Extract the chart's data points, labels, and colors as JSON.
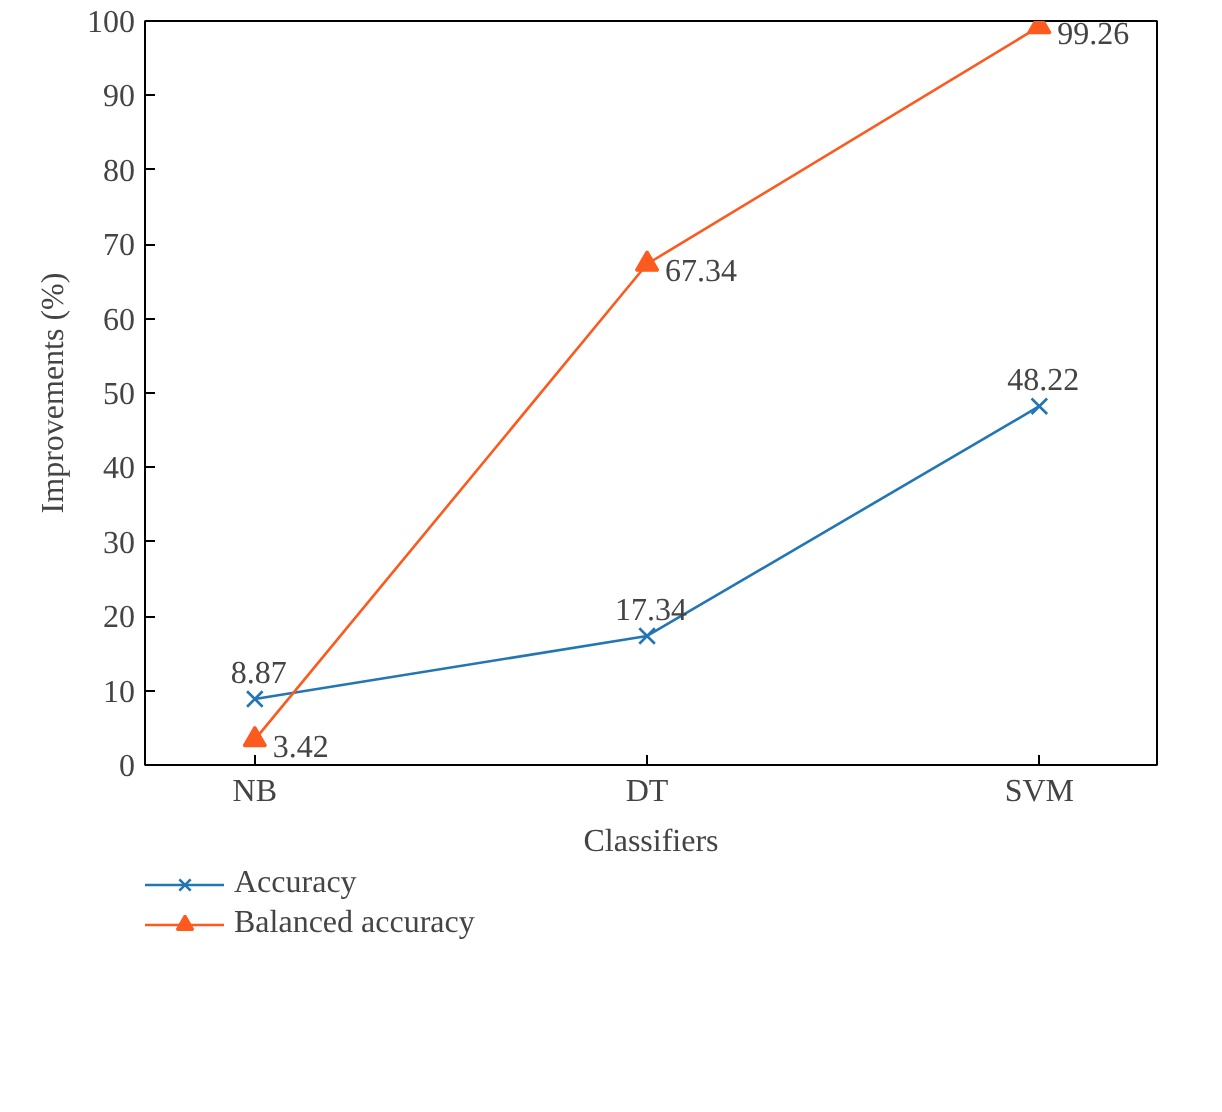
{
  "chart_data": {
    "type": "line",
    "xlabel": "Classifiers",
    "ylabel": "Improvements (%)",
    "categories": [
      "NB",
      "DT",
      "SVM"
    ],
    "ylim": [
      0,
      100
    ],
    "yticks": [
      0,
      10,
      20,
      30,
      40,
      50,
      60,
      70,
      80,
      90,
      100
    ],
    "grid": false,
    "legend": "bottom",
    "data_labels": true,
    "line_style": "solid",
    "series": [
      {
        "name": "Accuracy",
        "color": "#2276b4",
        "marker": "cross",
        "values": [
          8.87,
          17.34,
          48.22
        ]
      },
      {
        "name": "Balanced accuracy",
        "color": "#fc5a1e",
        "marker": "triangle",
        "values": [
          3.42,
          67.34,
          99.26
        ]
      }
    ]
  }
}
